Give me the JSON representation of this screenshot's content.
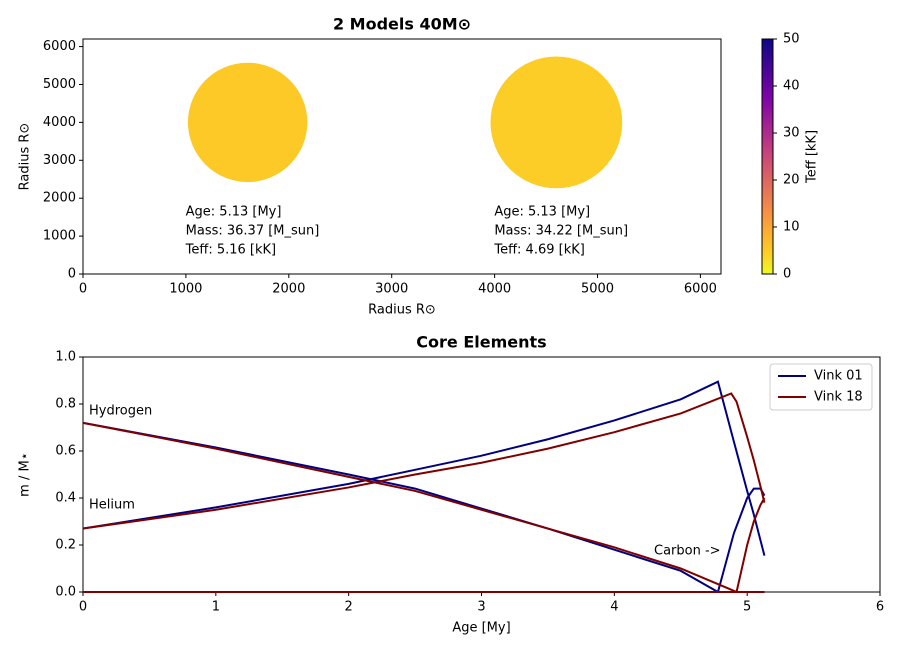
{
  "chart_data": [
    {
      "type": "bubble",
      "title": "2 Models 40M⊙",
      "x_label": "Radius R⊙",
      "y_label": "Radius R⊙",
      "xlim": [
        0,
        6200
      ],
      "ylim": [
        0,
        6200
      ],
      "xticks": [
        0,
        1000,
        2000,
        3000,
        4000,
        5000,
        6000
      ],
      "yticks": [
        0,
        1000,
        2000,
        3000,
        4000,
        5000,
        6000
      ],
      "series": {
        "x": [
          1600,
          4600
        ],
        "y": [
          4000,
          4000
        ],
        "sizes": [
          580,
          640
        ],
        "c": [
          5.16,
          4.69
        ]
      },
      "annotations": [
        [
          "Age: 5.13 [My]",
          "Mass: 36.37 [M_sun]",
          "Teff: 5.16 [kK]"
        ],
        [
          "Age: 5.13 [My]",
          "Mass: 34.22 [M_sun]",
          "Teff: 4.69 [kK]"
        ]
      ],
      "colorbar": {
        "label": "Teff [kK]",
        "lim": [
          0,
          50
        ],
        "ticks": [
          0,
          10,
          20,
          30,
          40,
          50
        ],
        "colors": [
          "#f0f921",
          "#fdca26",
          "#f89540",
          "#cc4778",
          "#7e03a8",
          "#0d0887"
        ],
        "stops": [
          0,
          0.1,
          0.25,
          0.5,
          0.75,
          1
        ]
      }
    },
    {
      "type": "line",
      "title": "Core Elements",
      "x_label": "Age [My]",
      "y_label": "m / M⋆",
      "xlim": [
        0,
        6
      ],
      "ylim": [
        0,
        1
      ],
      "xticks": [
        0,
        1,
        2,
        3,
        4,
        5,
        6
      ],
      "yticks": [
        {
          "value": 0,
          "label": "0.0"
        },
        0.2,
        0.4,
        0.6,
        0.8,
        {
          "value": 1,
          "label": "1.0"
        }
      ],
      "legend": "upper right",
      "series": [
        {
          "name": "Vink 01",
          "color": "#000080",
          "x": [
            0,
            1,
            2,
            2.5,
            3,
            3.5,
            4,
            4.5,
            4.78,
            4.9,
            5.0,
            5.05,
            5.1,
            5.13
          ],
          "lines": [
            {
              "values": [
                0.72,
                0.615,
                0.5,
                0.44,
                0.355,
                0.27,
                0.18,
                0.09,
                0,
                0,
                0,
                0,
                0,
                0
              ]
            },
            {
              "values": [
                0.27,
                0.36,
                0.46,
                0.52,
                0.58,
                0.65,
                0.73,
                0.82,
                0.895,
                0.64,
                0.43,
                0.33,
                0.22,
                0.155
              ]
            },
            {
              "values": [
                0,
                0,
                0,
                0,
                0,
                0,
                0,
                0,
                0,
                0.25,
                0.4,
                0.44,
                0.44,
                0.41
              ]
            }
          ]
        },
        {
          "name": "Vink 18",
          "color": "#800000",
          "x": [
            0,
            1,
            2,
            2.5,
            3,
            3.5,
            4,
            4.5,
            4.88,
            4.92,
            5.0,
            5.05,
            5.1,
            5.13
          ],
          "lines": [
            {
              "values": [
                0.72,
                0.61,
                0.49,
                0.43,
                0.35,
                0.27,
                0.19,
                0.1,
                0.01,
                0,
                0,
                0,
                0,
                0
              ]
            },
            {
              "values": [
                0.27,
                0.35,
                0.445,
                0.5,
                0.55,
                0.61,
                0.68,
                0.76,
                0.845,
                0.81,
                0.66,
                0.56,
                0.45,
                0.38
              ]
            },
            {
              "values": [
                0,
                0,
                0,
                0,
                0,
                0,
                0,
                0,
                0,
                0,
                0.2,
                0.3,
                0.37,
                0.4
              ]
            }
          ]
        }
      ],
      "annotations": [
        "Hydrogen",
        "Helium",
        "Carbon ->"
      ]
    }
  ]
}
